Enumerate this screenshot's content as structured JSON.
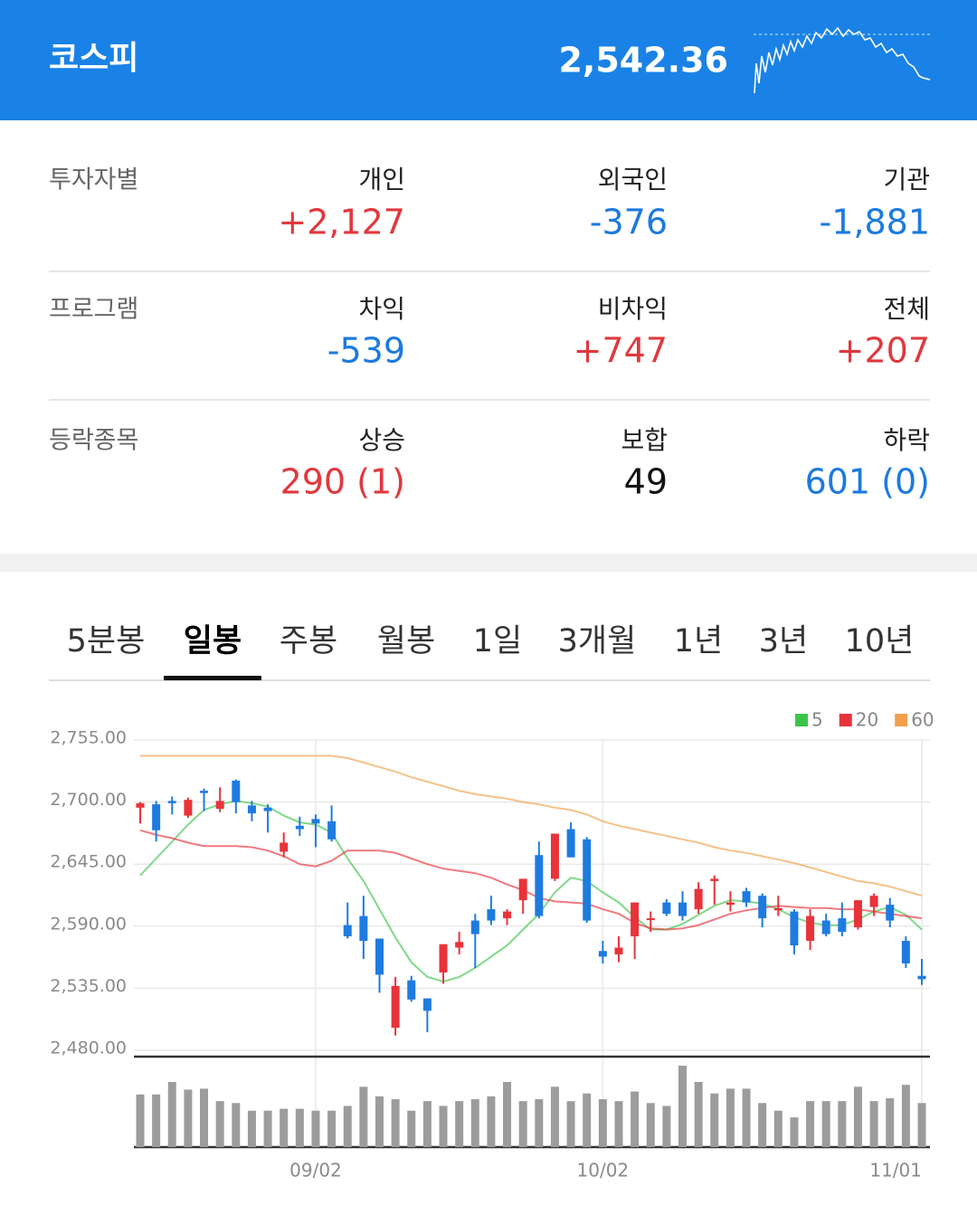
{
  "header": {
    "title": "코스피",
    "value": "2,542.36"
  },
  "investors": {
    "rows": [
      {
        "label": "투자자별",
        "cells": [
          {
            "name": "개인",
            "value": "+2,127",
            "color": "#e0393e"
          },
          {
            "name": "외국인",
            "value": "-376",
            "color": "#1d7ae0"
          },
          {
            "name": "기관",
            "value": "-1,881",
            "color": "#1d7ae0"
          }
        ]
      },
      {
        "label": "프로그램",
        "cells": [
          {
            "name": "차익",
            "value": "-539",
            "color": "#1d7ae0"
          },
          {
            "name": "비차익",
            "value": "+747",
            "color": "#e0393e"
          },
          {
            "name": "전체",
            "value": "+207",
            "color": "#e0393e"
          }
        ]
      },
      {
        "label": "등락종목",
        "cells": [
          {
            "name": "상승",
            "value": "290 (1)",
            "color": "#e0393e"
          },
          {
            "name": "보합",
            "value": "49",
            "color": "#111111"
          },
          {
            "name": "하락",
            "value": "601 (0)",
            "color": "#1d7ae0"
          }
        ]
      }
    ]
  },
  "tabs": {
    "items": [
      "5분봉",
      "일봉",
      "주봉",
      "월봉",
      "1일",
      "3개월",
      "1년",
      "3년",
      "10년"
    ],
    "active": 1
  },
  "chart_data": {
    "type": "candlestick",
    "categories": [
      null,
      null,
      null,
      null,
      null,
      null,
      null,
      null,
      null,
      null,
      null,
      "09/02",
      null,
      null,
      null,
      null,
      null,
      null,
      null,
      null,
      null,
      null,
      null,
      null,
      null,
      null,
      null,
      null,
      null,
      "10/02",
      null,
      null,
      null,
      null,
      null,
      null,
      null,
      null,
      null,
      null,
      null,
      null,
      null,
      null,
      null,
      null,
      null,
      null,
      null,
      "11/01"
    ],
    "open": [
      2695,
      2698,
      2701,
      2688,
      2710,
      2694,
      2719,
      2697,
      2695,
      2656,
      2679,
      2685,
      2683,
      2591,
      2599,
      2579,
      2500,
      2542,
      2526,
      2549,
      2571,
      2595,
      2605,
      2597,
      2613,
      2653,
      2632,
      2676,
      2667,
      2568,
      2565,
      2581,
      2596,
      2611,
      2611,
      2605,
      2630,
      2609,
      2621,
      2617,
      2604,
      2603,
      2577,
      2595,
      2597,
      2589,
      2607,
      2609,
      2577,
      2546
    ],
    "high": [
      2700,
      2701,
      2705,
      2704,
      2712,
      2713,
      2720,
      2701,
      2698,
      2673,
      2687,
      2689,
      2697,
      2611,
      2617,
      2579,
      2545,
      2546,
      2526,
      2574,
      2585,
      2601,
      2617,
      2605,
      2632,
      2665,
      2672,
      2682,
      2669,
      2577,
      2581,
      2611,
      2603,
      2614,
      2621,
      2629,
      2635,
      2621,
      2624,
      2619,
      2617,
      2605,
      2605,
      2601,
      2611,
      2613,
      2619,
      2615,
      2581,
      2561
    ],
    "low": [
      2681,
      2665,
      2689,
      2686,
      2692,
      2691,
      2690,
      2683,
      2673,
      2651,
      2670,
      2660,
      2665,
      2579,
      2561,
      2531,
      2493,
      2523,
      2496,
      2539,
      2565,
      2553,
      2591,
      2591,
      2601,
      2597,
      2630,
      2651,
      2593,
      2557,
      2558,
      2561,
      2585,
      2599,
      2595,
      2601,
      2609,
      2603,
      2607,
      2589,
      2599,
      2565,
      2569,
      2581,
      2581,
      2587,
      2599,
      2589,
      2553,
      2538
    ],
    "close": [
      2699,
      2675,
      2699,
      2702,
      2708,
      2701,
      2700,
      2690,
      2692,
      2664,
      2676,
      2681,
      2667,
      2581,
      2577,
      2547,
      2537,
      2525,
      2515,
      2574,
      2576,
      2583,
      2595,
      2603,
      2632,
      2599,
      2672,
      2651,
      2595,
      2563,
      2571,
      2611,
      2597,
      2601,
      2599,
      2623,
      2632,
      2611,
      2611,
      2597,
      2606,
      2573,
      2599,
      2583,
      2585,
      2613,
      2617,
      2595,
      2557,
      2543
    ],
    "up_color": "#e8333a",
    "down_color": "#1f7be0",
    "series": [
      {
        "name": "5",
        "color": "#3cc44a",
        "values": [
          2635,
          2650,
          2665,
          2680,
          2693,
          2698,
          2701,
          2699,
          2696,
          2688,
          2682,
          2680,
          2673,
          2650,
          2630,
          2605,
          2580,
          2558,
          2545,
          2541,
          2545,
          2553,
          2563,
          2573,
          2587,
          2601,
          2620,
          2633,
          2630,
          2620,
          2611,
          2598,
          2587,
          2587,
          2592,
          2600,
          2608,
          2613,
          2612,
          2610,
          2605,
          2598,
          2593,
          2591,
          2591,
          2596,
          2603,
          2607,
          2600,
          2587
        ]
      },
      {
        "name": "20",
        "color": "#e8333a",
        "values": [
          2675,
          2671,
          2668,
          2664,
          2661,
          2661,
          2661,
          2660,
          2657,
          2652,
          2645,
          2643,
          2648,
          2657,
          2657,
          2657,
          2655,
          2650,
          2645,
          2641,
          2639,
          2637,
          2633,
          2627,
          2622,
          2615,
          2612,
          2611,
          2610,
          2605,
          2601,
          2593,
          2588,
          2587,
          2588,
          2591,
          2596,
          2601,
          2604,
          2606,
          2608,
          2607,
          2606,
          2606,
          2605,
          2605,
          2603,
          2601,
          2599,
          2597
        ]
      },
      {
        "name": "60",
        "color": "#f0a04b",
        "values": [
          2741,
          2741,
          2741,
          2741,
          2741,
          2741,
          2741,
          2741,
          2741,
          2741,
          2741,
          2741,
          2741,
          2739,
          2735,
          2731,
          2727,
          2722,
          2718,
          2714,
          2710,
          2707,
          2705,
          2703,
          2700,
          2698,
          2695,
          2693,
          2689,
          2683,
          2679,
          2676,
          2673,
          2670,
          2667,
          2664,
          2660,
          2657,
          2655,
          2652,
          2649,
          2646,
          2642,
          2638,
          2634,
          2630,
          2628,
          2625,
          2621,
          2617
        ]
      }
    ],
    "volume": [
      55,
      55,
      68,
      60,
      61,
      48,
      46,
      38,
      38,
      40,
      40,
      38,
      38,
      43,
      63,
      53,
      50,
      38,
      48,
      43,
      48,
      50,
      53,
      68,
      48,
      50,
      63,
      48,
      56,
      50,
      48,
      58,
      46,
      43,
      85,
      68,
      56,
      61,
      61,
      46,
      38,
      31,
      48,
      48,
      48,
      63,
      48,
      51,
      65,
      46
    ],
    "volume_color": "#9c9c9c",
    "ylim": [
      2480,
      2755
    ],
    "yticks": [
      {
        "value": 2755,
        "label": "2,755.00"
      },
      {
        "value": 2700,
        "label": "2,700.00"
      },
      {
        "value": 2645,
        "label": "2,645.00"
      },
      {
        "value": 2590,
        "label": "2,590.00"
      },
      {
        "value": 2535,
        "label": "2,535.00"
      },
      {
        "value": 2480,
        "label": "2,480.00"
      }
    ],
    "grid": true,
    "legend": "top-right"
  }
}
